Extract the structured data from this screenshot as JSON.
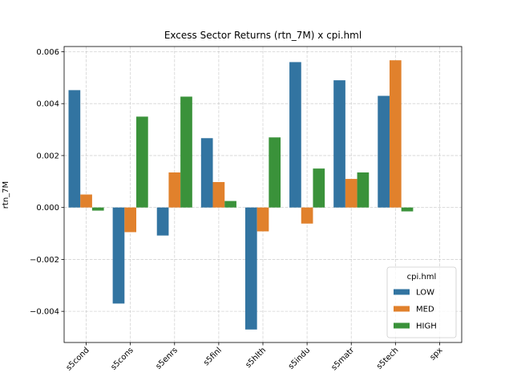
{
  "chart_data": {
    "type": "bar",
    "title": "Excess Sector Returns (rtn_7M) x cpi.hml",
    "xlabel": "",
    "ylabel": "rtn_7M",
    "categories": [
      "s5cond",
      "s5cons",
      "s5enrs",
      "s5finl",
      "s5hlth",
      "s5indu",
      "s5matr",
      "s5tech",
      "spx"
    ],
    "ylim": [
      -0.0052,
      0.0062
    ],
    "yticks": [
      -0.004,
      -0.002,
      0.0,
      0.002,
      0.004,
      0.006
    ],
    "ytick_labels": [
      "−0.004",
      "−0.002",
      "0.000",
      "0.002",
      "0.004",
      "0.006"
    ],
    "grid": true,
    "legend": {
      "title": "cpi.hml",
      "position": "lower-right"
    },
    "series": [
      {
        "name": "LOW",
        "color": "#3274a1",
        "values": [
          0.00452,
          -0.0037,
          -0.00108,
          0.00267,
          -0.0047,
          0.0056,
          0.0049,
          0.0043,
          null
        ]
      },
      {
        "name": "MED",
        "color": "#e1812c",
        "values": [
          0.0005,
          -0.00095,
          0.00135,
          0.00098,
          -0.00092,
          -0.00062,
          0.0011,
          0.00567,
          null
        ]
      },
      {
        "name": "HIGH",
        "color": "#3a923a",
        "values": [
          -0.00012,
          0.0035,
          0.00427,
          0.00025,
          0.0027,
          0.0015,
          0.00135,
          -0.00015,
          null
        ]
      }
    ]
  }
}
